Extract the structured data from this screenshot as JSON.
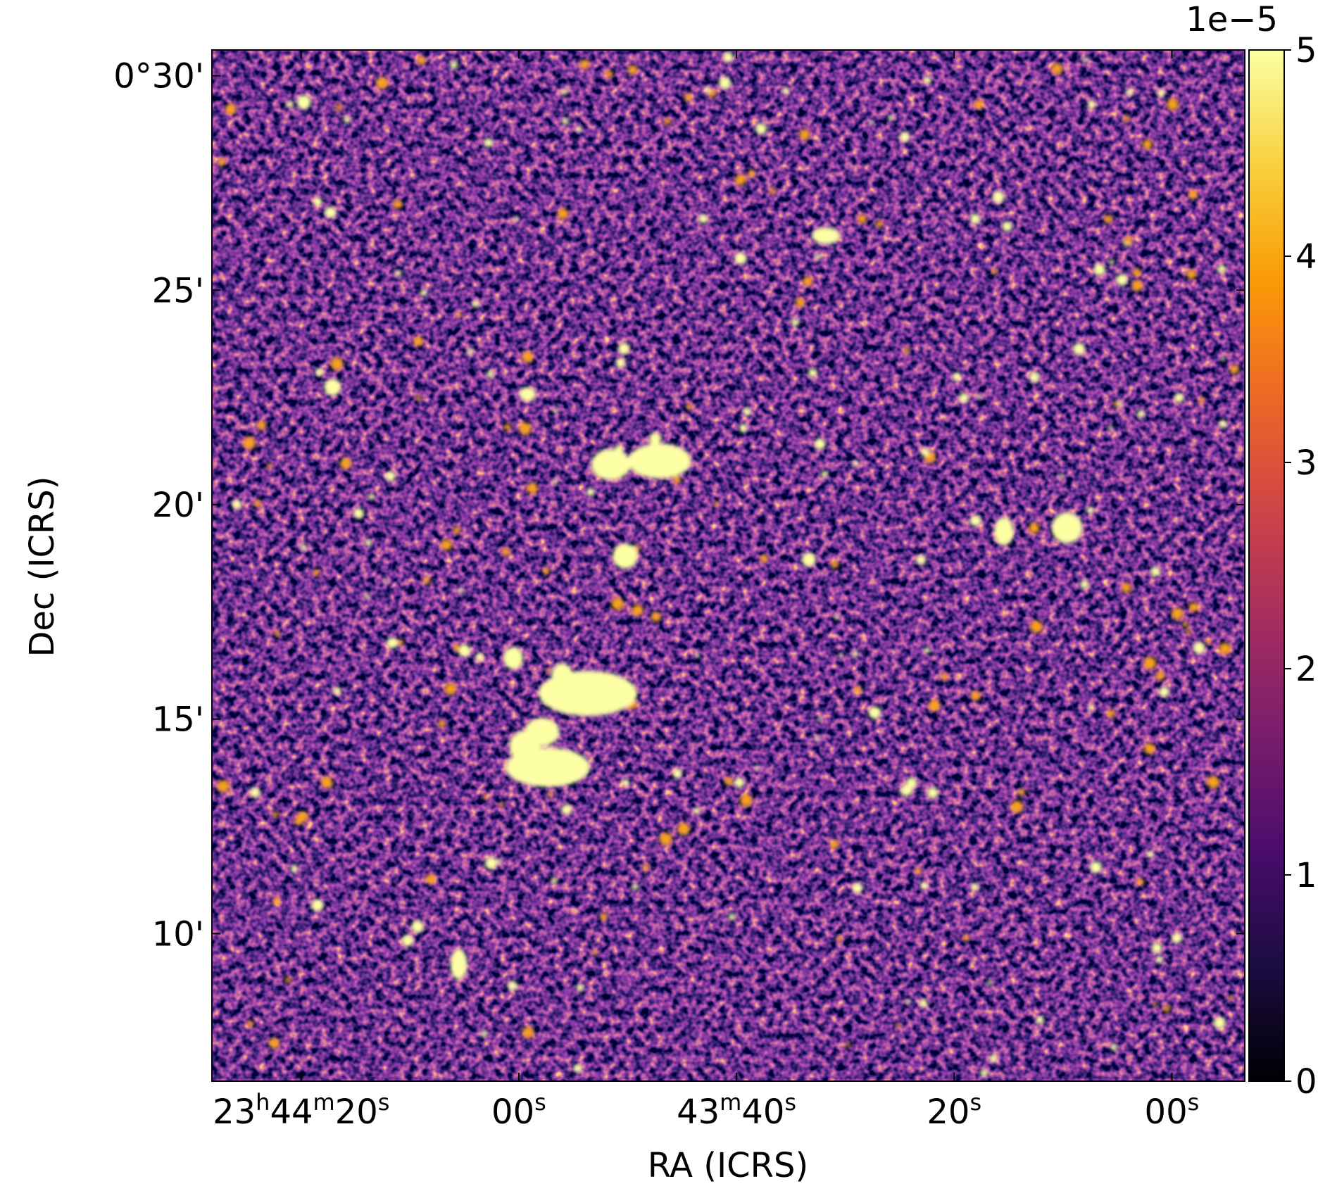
{
  "chart_data": {
    "type": "image",
    "xlabel": "RA (ICRS)",
    "ylabel": "Dec (ICRS)",
    "xlim": [
      2668.2,
      2573.3
    ],
    "xticks": [
      {
        "value": 2660,
        "label": [
          "23",
          "h",
          "44",
          "m",
          "20",
          "s"
        ]
      },
      {
        "value": 2640,
        "label": [
          "00",
          "s"
        ]
      },
      {
        "value": 2620,
        "label": [
          "43",
          "m",
          "40",
          "s"
        ]
      },
      {
        "value": 2600,
        "label": [
          "20",
          "s"
        ]
      },
      {
        "value": 2580,
        "label": [
          "00",
          "s"
        ]
      }
    ],
    "ylim": [
      6.56,
      30.6
    ],
    "yticks": [
      {
        "value": 30,
        "label": "0°30'"
      },
      {
        "value": 25,
        "label": "25'"
      },
      {
        "value": 20,
        "label": "20'"
      },
      {
        "value": 15,
        "label": "15'"
      },
      {
        "value": 10,
        "label": "10'"
      }
    ],
    "colorbar": {
      "lim": [
        0,
        5
      ],
      "ticks": [
        0,
        1,
        2,
        3,
        4,
        5
      ],
      "offset_label": "1e−5",
      "colors": [
        "#000004",
        "#1b0c41",
        "#4a0c6b",
        "#781c6d",
        "#a52c60",
        "#cf4446",
        "#ed6925",
        "#fb9b06",
        "#f7d13d",
        "#fcffa4"
      ]
    }
  }
}
